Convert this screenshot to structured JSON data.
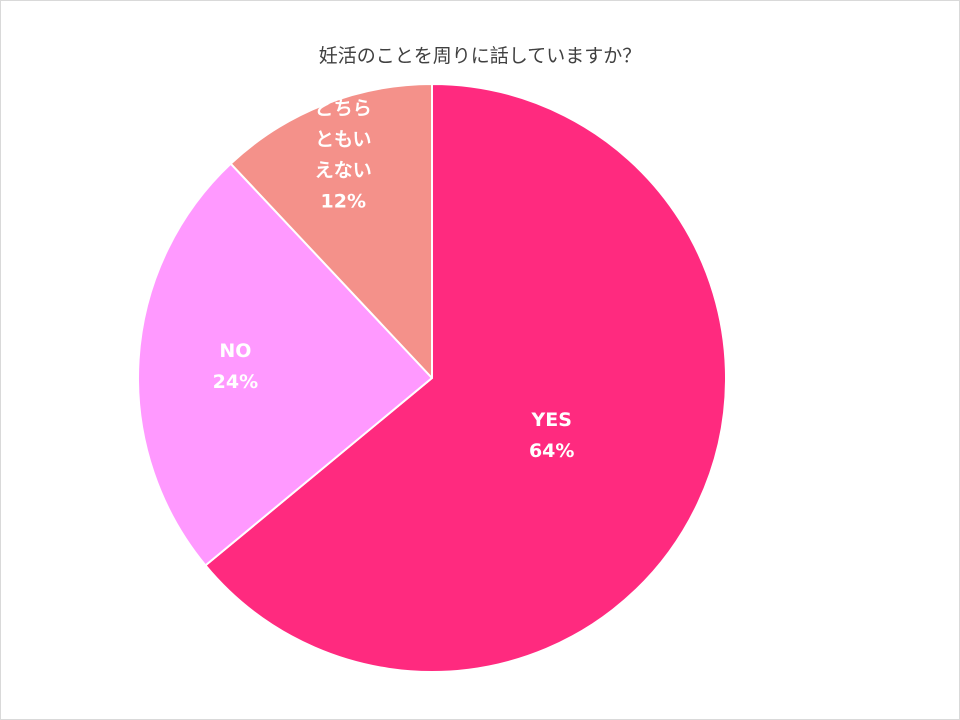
{
  "chart_data": {
    "type": "pie",
    "title": "妊活のことを周りに話していますか？",
    "start_angle_deg": 0,
    "direction": "clockwise",
    "slices": [
      {
        "label": "YES",
        "value": 64,
        "value_label": "64%",
        "color": "#FF2A7F"
      },
      {
        "label": "NO",
        "value": 24,
        "value_label": "24%",
        "color": "#FF99FF"
      },
      {
        "label": "どちらともいえない",
        "label_lines": [
          "どちら",
          "ともい",
          "えない"
        ],
        "value": 12,
        "value_label": "12%",
        "color": "#F4918A"
      }
    ],
    "legend": "none"
  }
}
